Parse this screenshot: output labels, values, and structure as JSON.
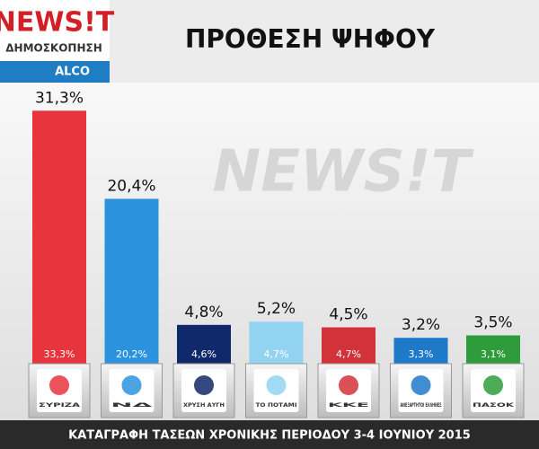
{
  "brand": "NEWS!T",
  "brand_subtitle": "ΔΗΜΟΣΚΟΠΗΣΗ",
  "pollster": "ALCO",
  "chart_data": {
    "type": "bar",
    "title": "ΠΡΟΘΕΣΗ ΨΗΦΟΥ",
    "categories": [
      "ΣΥΡΙΖΑ",
      "ΝΔ",
      "ΧΡΥΣΗ ΑΥΓΗ",
      "ΤΟ ΠΟΤΑΜΙ",
      "ΚΚΕ",
      "ΑΝΕΞΑΡΤΗΤΟΙ ΕΛΛΗΝΕΣ",
      "ΠΑΣΟΚ"
    ],
    "series": [
      {
        "values": [
          31.3,
          20.4,
          4.8,
          5.2,
          4.5,
          3.2,
          3.5
        ],
        "value_labels": [
          "31,3%",
          "20,4%",
          "4,8%",
          "5,2%",
          "4,5%",
          "3,2%",
          "3,5%"
        ],
        "colors": [
          "#e8343c",
          "#2b93de",
          "#10296a",
          "#93d3f2",
          "#d2333a",
          "#1f79c9",
          "#2f9c3c"
        ]
      },
      {
        "values": [
          33.3,
          20.2,
          4.6,
          4.7,
          4.7,
          3.3,
          3.1
        ],
        "value_labels": [
          "33,3%",
          "20,2%",
          "4,6%",
          "4,7%",
          "4,7%",
          "3,3%",
          "3,1%"
        ]
      }
    ],
    "footnote": "ΚΑΤΑΓΡΑΦΗ ΤΑΣΕΩΝ ΧΡΟΝΙΚΗΣ ΠΕΡΙΟΔΟΥ 3-4 ΙΟΥΝΙΟΥ 2015"
  }
}
